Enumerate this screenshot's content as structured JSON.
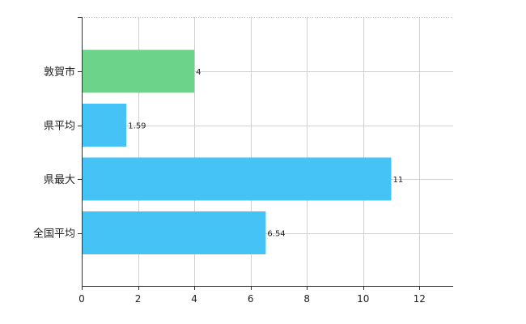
{
  "chart_data": {
    "type": "bar",
    "orientation": "horizontal",
    "categories": [
      "敦賀市",
      "県平均",
      "県最大",
      "全国平均"
    ],
    "values": [
      4,
      1.59,
      11,
      6.54
    ],
    "data_labels": [
      "4",
      "1.59",
      "11",
      "6.54"
    ],
    "bar_colors": [
      "#6cd38a",
      "#45c3f7",
      "#45c3f7",
      "#45c3f7"
    ],
    "xlim": [
      0,
      13.2
    ],
    "x_ticks": [
      0,
      2,
      4,
      6,
      8,
      10,
      12
    ],
    "x_tick_labels": [
      "0",
      "2",
      "4",
      "6",
      "8",
      "10",
      "12"
    ],
    "grid": true,
    "grid_style": "dotted",
    "title": "",
    "xlabel": "",
    "ylabel": ""
  }
}
